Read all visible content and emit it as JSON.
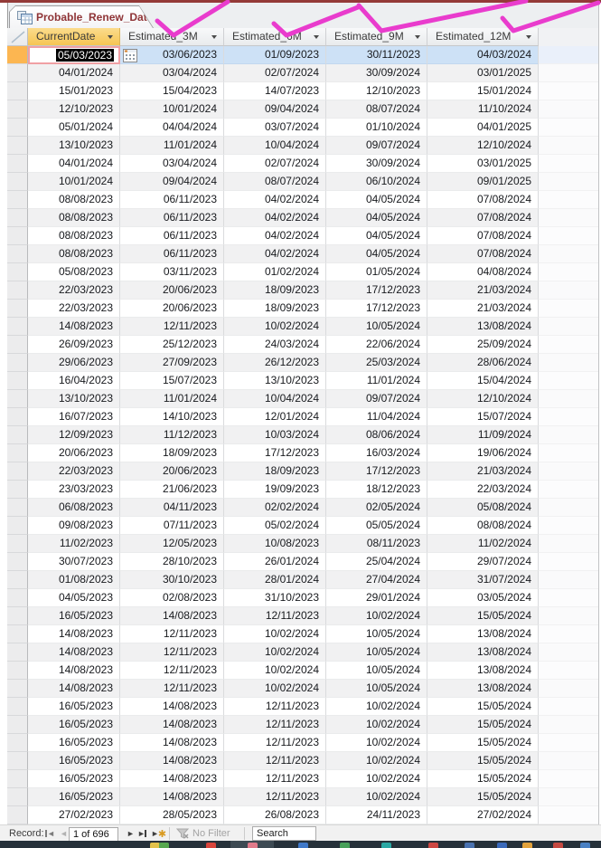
{
  "window": {
    "tab_title": "Probable_Renew_Date"
  },
  "table": {
    "columns": [
      {
        "label": "CurrentDate",
        "selected": true
      },
      {
        "label": "Estimated_3M",
        "selected": false
      },
      {
        "label": "Estimated_6M",
        "selected": false
      },
      {
        "label": "Estimated_9M",
        "selected": false
      },
      {
        "label": "Estimated_12M",
        "selected": false
      }
    ],
    "selected_row_index": 0,
    "selected_cell": {
      "row": 0,
      "col": 0,
      "value": "05/03/2023"
    },
    "rows": [
      [
        "05/03/2023",
        "03/06/2023",
        "01/09/2023",
        "30/11/2023",
        "04/03/2024"
      ],
      [
        "04/01/2024",
        "03/04/2024",
        "02/07/2024",
        "30/09/2024",
        "03/01/2025"
      ],
      [
        "15/01/2023",
        "15/04/2023",
        "14/07/2023",
        "12/10/2023",
        "15/01/2024"
      ],
      [
        "12/10/2023",
        "10/01/2024",
        "09/04/2024",
        "08/07/2024",
        "11/10/2024"
      ],
      [
        "05/01/2024",
        "04/04/2024",
        "03/07/2024",
        "01/10/2024",
        "04/01/2025"
      ],
      [
        "13/10/2023",
        "11/01/2024",
        "10/04/2024",
        "09/07/2024",
        "12/10/2024"
      ],
      [
        "04/01/2024",
        "03/04/2024",
        "02/07/2024",
        "30/09/2024",
        "03/01/2025"
      ],
      [
        "10/01/2024",
        "09/04/2024",
        "08/07/2024",
        "06/10/2024",
        "09/01/2025"
      ],
      [
        "08/08/2023",
        "06/11/2023",
        "04/02/2024",
        "04/05/2024",
        "07/08/2024"
      ],
      [
        "08/08/2023",
        "06/11/2023",
        "04/02/2024",
        "04/05/2024",
        "07/08/2024"
      ],
      [
        "08/08/2023",
        "06/11/2023",
        "04/02/2024",
        "04/05/2024",
        "07/08/2024"
      ],
      [
        "08/08/2023",
        "06/11/2023",
        "04/02/2024",
        "04/05/2024",
        "07/08/2024"
      ],
      [
        "05/08/2023",
        "03/11/2023",
        "01/02/2024",
        "01/05/2024",
        "04/08/2024"
      ],
      [
        "22/03/2023",
        "20/06/2023",
        "18/09/2023",
        "17/12/2023",
        "21/03/2024"
      ],
      [
        "22/03/2023",
        "20/06/2023",
        "18/09/2023",
        "17/12/2023",
        "21/03/2024"
      ],
      [
        "14/08/2023",
        "12/11/2023",
        "10/02/2024",
        "10/05/2024",
        "13/08/2024"
      ],
      [
        "26/09/2023",
        "25/12/2023",
        "24/03/2024",
        "22/06/2024",
        "25/09/2024"
      ],
      [
        "29/06/2023",
        "27/09/2023",
        "26/12/2023",
        "25/03/2024",
        "28/06/2024"
      ],
      [
        "16/04/2023",
        "15/07/2023",
        "13/10/2023",
        "11/01/2024",
        "15/04/2024"
      ],
      [
        "13/10/2023",
        "11/01/2024",
        "10/04/2024",
        "09/07/2024",
        "12/10/2024"
      ],
      [
        "16/07/2023",
        "14/10/2023",
        "12/01/2024",
        "11/04/2024",
        "15/07/2024"
      ],
      [
        "12/09/2023",
        "11/12/2023",
        "10/03/2024",
        "08/06/2024",
        "11/09/2024"
      ],
      [
        "20/06/2023",
        "18/09/2023",
        "17/12/2023",
        "16/03/2024",
        "19/06/2024"
      ],
      [
        "22/03/2023",
        "20/06/2023",
        "18/09/2023",
        "17/12/2023",
        "21/03/2024"
      ],
      [
        "23/03/2023",
        "21/06/2023",
        "19/09/2023",
        "18/12/2023",
        "22/03/2024"
      ],
      [
        "06/08/2023",
        "04/11/2023",
        "02/02/2024",
        "02/05/2024",
        "05/08/2024"
      ],
      [
        "09/08/2023",
        "07/11/2023",
        "05/02/2024",
        "05/05/2024",
        "08/08/2024"
      ],
      [
        "11/02/2023",
        "12/05/2023",
        "10/08/2023",
        "08/11/2023",
        "11/02/2024"
      ],
      [
        "30/07/2023",
        "28/10/2023",
        "26/01/2024",
        "25/04/2024",
        "29/07/2024"
      ],
      [
        "01/08/2023",
        "30/10/2023",
        "28/01/2024",
        "27/04/2024",
        "31/07/2024"
      ],
      [
        "04/05/2023",
        "02/08/2023",
        "31/10/2023",
        "29/01/2024",
        "03/05/2024"
      ],
      [
        "16/05/2023",
        "14/08/2023",
        "12/11/2023",
        "10/02/2024",
        "15/05/2024"
      ],
      [
        "14/08/2023",
        "12/11/2023",
        "10/02/2024",
        "10/05/2024",
        "13/08/2024"
      ],
      [
        "14/08/2023",
        "12/11/2023",
        "10/02/2024",
        "10/05/2024",
        "13/08/2024"
      ],
      [
        "14/08/2023",
        "12/11/2023",
        "10/02/2024",
        "10/05/2024",
        "13/08/2024"
      ],
      [
        "14/08/2023",
        "12/11/2023",
        "10/02/2024",
        "10/05/2024",
        "13/08/2024"
      ],
      [
        "16/05/2023",
        "14/08/2023",
        "12/11/2023",
        "10/02/2024",
        "15/05/2024"
      ],
      [
        "16/05/2023",
        "14/08/2023",
        "12/11/2023",
        "10/02/2024",
        "15/05/2024"
      ],
      [
        "16/05/2023",
        "14/08/2023",
        "12/11/2023",
        "10/02/2024",
        "15/05/2024"
      ],
      [
        "16/05/2023",
        "14/08/2023",
        "12/11/2023",
        "10/02/2024",
        "15/05/2024"
      ],
      [
        "16/05/2023",
        "14/08/2023",
        "12/11/2023",
        "10/02/2024",
        "15/05/2024"
      ],
      [
        "16/05/2023",
        "14/08/2023",
        "12/11/2023",
        "10/02/2024",
        "15/05/2024"
      ],
      [
        "27/02/2023",
        "28/05/2023",
        "26/08/2023",
        "24/11/2023",
        "27/02/2024"
      ]
    ]
  },
  "record_bar": {
    "label": "Record:",
    "position": "1 of 696",
    "filter_label": "No Filter",
    "search_text": "Search"
  },
  "icons": {
    "tab_datasheet_icon": "datasheet-grid",
    "corner_select_all_icon": "diagonal-triangle",
    "sort_dropdown_icon": "down-arrow",
    "date_picker_icon": "calendar",
    "nav_first_icon": "bar-left-triangle",
    "nav_prev_icon": "left-triangle",
    "nav_next_icon": "right-triangle",
    "nav_last_icon": "right-triangle-bar",
    "nav_new_icon": "right-triangle-asterisk",
    "filter_icon": "funnel-x"
  },
  "annotation": {
    "color": "#e93ccd",
    "description": "pink marker checkmarks over the four Estimated column headers"
  },
  "colors": {
    "top_line": "#943a38",
    "tab_text": "#8f3436",
    "selected_header": "#f6c553",
    "selected_row": "#cde1f6",
    "selected_row_marker": "#fcb651",
    "edit_cell_border": "#f0a0a4",
    "alt_row": "#f1f1f2",
    "taskbar_bg": "#26313a"
  },
  "taskbar": {
    "icon_colors": [
      "#e3c24c",
      "#57a84f",
      "#d9453c",
      "#e07a8a",
      "#3f78c8",
      "#47a05a",
      "#2ba8a4",
      "#cd4742",
      "#4a72b0",
      "#3a69ba",
      "#e2a23c",
      "#c64a42",
      "#4a81c4"
    ]
  }
}
